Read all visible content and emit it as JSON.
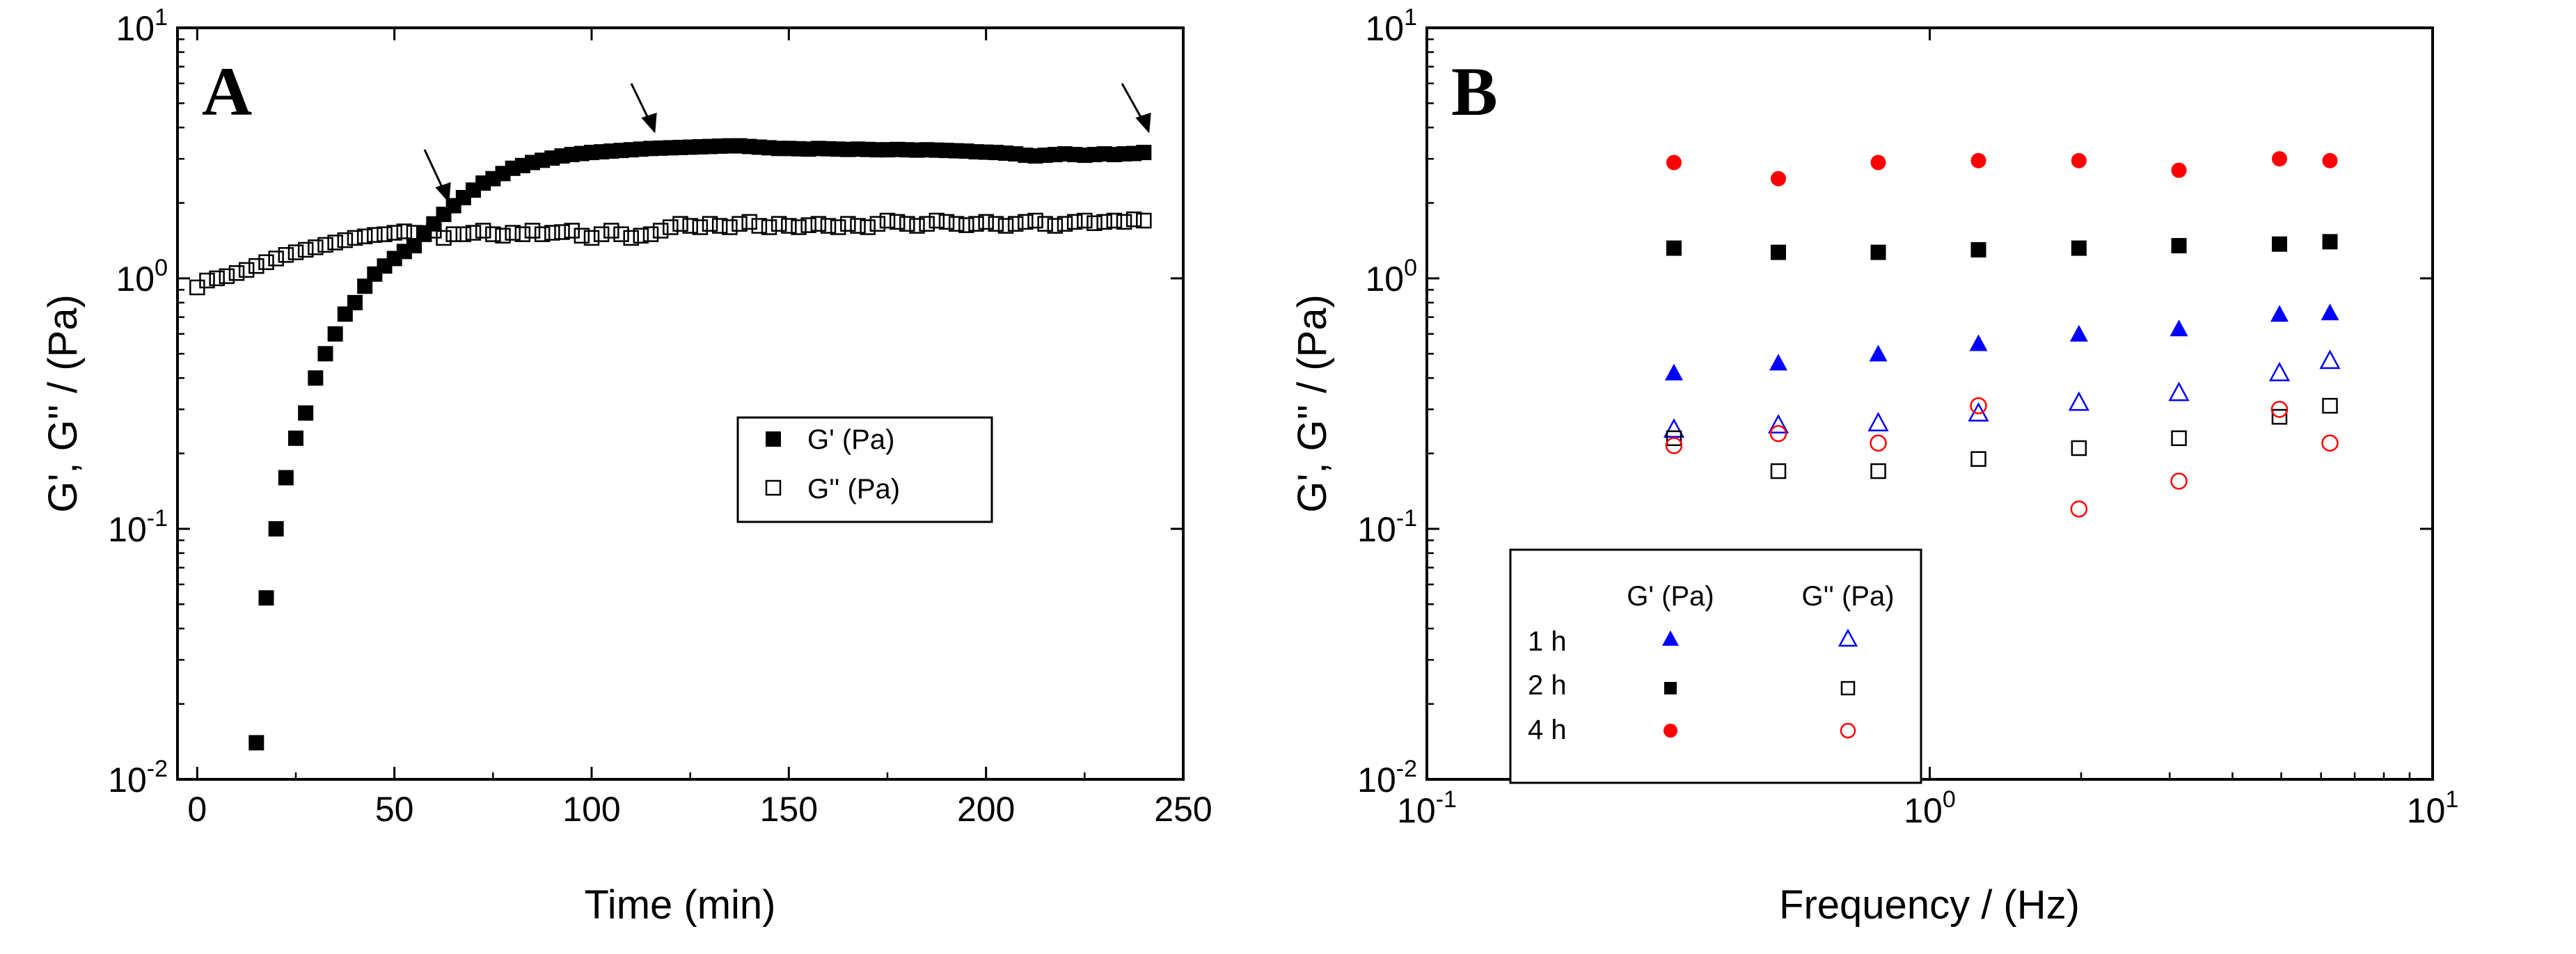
{
  "chart_data": [
    {
      "panel_label": "A",
      "type": "scatter",
      "xlabel": "Time (min)",
      "ylabel": "G', G'' / (Pa)",
      "xscale": "linear",
      "yscale": "log",
      "xlim": [
        -5,
        250
      ],
      "ylim": [
        0.01,
        10
      ],
      "xticks": [
        0,
        50,
        100,
        150,
        200,
        250
      ],
      "xtick_labels": [
        "0",
        "50",
        "100",
        "150",
        "200",
        "250"
      ],
      "yticks": [
        {
          "value": 0.01,
          "base": "10",
          "exp": "-2"
        },
        {
          "value": 0.1,
          "base": "10",
          "exp": "-1"
        },
        {
          "value": 1,
          "base": "10",
          "exp": "0"
        },
        {
          "value": 10,
          "base": "10",
          "exp": "1"
        }
      ],
      "legend_position": "center-right",
      "annotations": "arrows marking time points at about 57, 110 and 237 min",
      "arrow_targets": [
        {
          "x": 57,
          "y": 1.7
        },
        {
          "x": 110,
          "y": 3.4
        },
        {
          "x": 237,
          "y": 3.3
        }
      ],
      "series": [
        {
          "name": "G' (Pa)",
          "marker": "filled-square",
          "color": "#000000",
          "x": [
            15,
            17.5,
            20,
            22.5,
            25,
            27.5,
            30,
            32.5,
            35,
            37.5,
            40,
            42.5,
            45,
            47.5,
            50,
            52.5,
            55,
            57.5,
            60,
            62.5,
            65,
            67.5,
            70,
            72.5,
            75,
            77.5,
            80,
            82.5,
            85,
            87.5,
            90,
            92.5,
            95,
            97.5,
            100,
            102.5,
            105,
            107.5,
            110,
            112.5,
            115,
            117.5,
            120,
            122.5,
            125,
            127.5,
            130,
            132.5,
            135,
            137.5,
            140,
            142.5,
            145,
            147.5,
            150,
            152.5,
            155,
            157.5,
            160,
            162.5,
            165,
            167.5,
            170,
            172.5,
            175,
            177.5,
            180,
            182.5,
            185,
            187.5,
            190,
            192.5,
            195,
            197.5,
            200,
            202.5,
            205,
            207.5,
            210,
            212.5,
            215,
            217.5,
            220,
            222.5,
            225,
            227.5,
            230,
            232.5,
            235,
            237.5,
            240
          ],
          "y": [
            0.014,
            0.053,
            0.1,
            0.16,
            0.23,
            0.29,
            0.4,
            0.5,
            0.6,
            0.72,
            0.8,
            0.93,
            1.04,
            1.12,
            1.2,
            1.28,
            1.35,
            1.52,
            1.65,
            1.8,
            1.95,
            2.1,
            2.25,
            2.4,
            2.5,
            2.62,
            2.75,
            2.82,
            2.9,
            2.96,
            3.02,
            3.08,
            3.12,
            3.15,
            3.18,
            3.2,
            3.22,
            3.24,
            3.26,
            3.28,
            3.3,
            3.31,
            3.32,
            3.33,
            3.34,
            3.35,
            3.36,
            3.37,
            3.38,
            3.38,
            3.36,
            3.34,
            3.32,
            3.3,
            3.3,
            3.29,
            3.28,
            3.3,
            3.29,
            3.28,
            3.27,
            3.28,
            3.27,
            3.26,
            3.26,
            3.27,
            3.26,
            3.25,
            3.26,
            3.25,
            3.24,
            3.23,
            3.22,
            3.2,
            3.19,
            3.18,
            3.16,
            3.14,
            3.1,
            3.08,
            3.1,
            3.12,
            3.14,
            3.12,
            3.1,
            3.12,
            3.14,
            3.12,
            3.14,
            3.15,
            3.18
          ]
        },
        {
          "name": "G'' (Pa)",
          "marker": "open-square",
          "color": "#000000",
          "x": [
            0,
            2.5,
            5,
            7.5,
            10,
            12.5,
            15,
            17.5,
            20,
            22.5,
            25,
            27.5,
            30,
            32.5,
            35,
            37.5,
            40,
            42.5,
            45,
            47.5,
            50,
            52.5,
            55,
            57.5,
            60,
            62.5,
            65,
            67.5,
            70,
            72.5,
            75,
            77.5,
            80,
            82.5,
            85,
            87.5,
            90,
            92.5,
            95,
            97.5,
            100,
            102.5,
            105,
            107.5,
            110,
            112.5,
            115,
            117.5,
            120,
            122.5,
            125,
            127.5,
            130,
            132.5,
            135,
            137.5,
            140,
            142.5,
            145,
            147.5,
            150,
            152.5,
            155,
            157.5,
            160,
            162.5,
            165,
            167.5,
            170,
            172.5,
            175,
            177.5,
            180,
            182.5,
            185,
            187.5,
            190,
            192.5,
            195,
            197.5,
            200,
            202.5,
            205,
            207.5,
            210,
            212.5,
            215,
            217.5,
            220,
            222.5,
            225,
            227.5,
            230,
            232.5,
            235,
            237.5,
            240
          ],
          "y": [
            0.92,
            0.98,
            1.0,
            1.02,
            1.05,
            1.08,
            1.12,
            1.16,
            1.2,
            1.24,
            1.27,
            1.3,
            1.33,
            1.36,
            1.39,
            1.42,
            1.45,
            1.47,
            1.49,
            1.5,
            1.52,
            1.54,
            1.52,
            1.5,
            1.55,
            1.45,
            1.5,
            1.5,
            1.52,
            1.55,
            1.5,
            1.48,
            1.52,
            1.5,
            1.55,
            1.5,
            1.52,
            1.53,
            1.55,
            1.48,
            1.45,
            1.5,
            1.55,
            1.5,
            1.45,
            1.48,
            1.5,
            1.55,
            1.6,
            1.65,
            1.62,
            1.6,
            1.65,
            1.62,
            1.6,
            1.65,
            1.68,
            1.62,
            1.6,
            1.65,
            1.62,
            1.6,
            1.63,
            1.65,
            1.62,
            1.6,
            1.65,
            1.62,
            1.6,
            1.65,
            1.7,
            1.68,
            1.65,
            1.62,
            1.65,
            1.7,
            1.68,
            1.65,
            1.63,
            1.65,
            1.68,
            1.65,
            1.62,
            1.65,
            1.68,
            1.7,
            1.65,
            1.62,
            1.65,
            1.68,
            1.7,
            1.66,
            1.68,
            1.7,
            1.68,
            1.72,
            1.7
          ]
        }
      ]
    },
    {
      "panel_label": "B",
      "type": "scatter",
      "xlabel": "Frequency / (Hz)",
      "ylabel": "G', G'' / (Pa)",
      "xscale": "log",
      "yscale": "log",
      "xlim": [
        0.1,
        10
      ],
      "ylim": [
        0.01,
        10
      ],
      "xticks": [
        {
          "value": 0.1,
          "base": "10",
          "exp": "-1"
        },
        {
          "value": 1,
          "base": "10",
          "exp": "0"
        },
        {
          "value": 10,
          "base": "10",
          "exp": "1"
        }
      ],
      "yticks": [
        {
          "value": 0.01,
          "base": "10",
          "exp": "-2"
        },
        {
          "value": 0.1,
          "base": "10",
          "exp": "-1"
        },
        {
          "value": 1,
          "base": "10",
          "exp": "0"
        },
        {
          "value": 10,
          "base": "10",
          "exp": "1"
        }
      ],
      "legend_position": "bottom-left",
      "legend": {
        "col_headers": [
          "G' (Pa)",
          "G'' (Pa)"
        ],
        "rows": [
          "1 h",
          "2 h",
          "4 h"
        ]
      },
      "x": [
        0.31,
        0.5,
        0.79,
        1.25,
        1.98,
        3.13,
        4.96,
        6.25
      ],
      "series": [
        {
          "name": "1 h G' (Pa)",
          "marker": "filled-triangle",
          "color": "#0000ff",
          "y": [
            0.42,
            0.46,
            0.5,
            0.55,
            0.6,
            0.63,
            0.72,
            0.73
          ]
        },
        {
          "name": "1 h G'' (Pa)",
          "marker": "open-triangle",
          "color": "#0000ff",
          "y": [
            0.25,
            0.26,
            0.265,
            0.29,
            0.32,
            0.35,
            0.42,
            0.47
          ]
        },
        {
          "name": "2 h G' (Pa)",
          "marker": "filled-square",
          "color": "#000000",
          "y": [
            1.32,
            1.27,
            1.27,
            1.3,
            1.32,
            1.35,
            1.37,
            1.4
          ]
        },
        {
          "name": "2 h G'' (Pa)",
          "marker": "open-square",
          "color": "#000000",
          "y": [
            0.23,
            0.17,
            0.17,
            0.19,
            0.21,
            0.23,
            0.28,
            0.31
          ]
        },
        {
          "name": "4 h G' (Pa)",
          "marker": "filled-circle",
          "color": "#ff0000",
          "y": [
            2.9,
            2.5,
            2.9,
            2.95,
            2.95,
            2.7,
            3.0,
            2.95
          ]
        },
        {
          "name": "4 h G'' (Pa)",
          "marker": "open-circle",
          "color": "#ff0000",
          "y": [
            0.215,
            0.24,
            0.22,
            0.31,
            0.12,
            0.155,
            0.3,
            0.22
          ]
        }
      ]
    }
  ]
}
